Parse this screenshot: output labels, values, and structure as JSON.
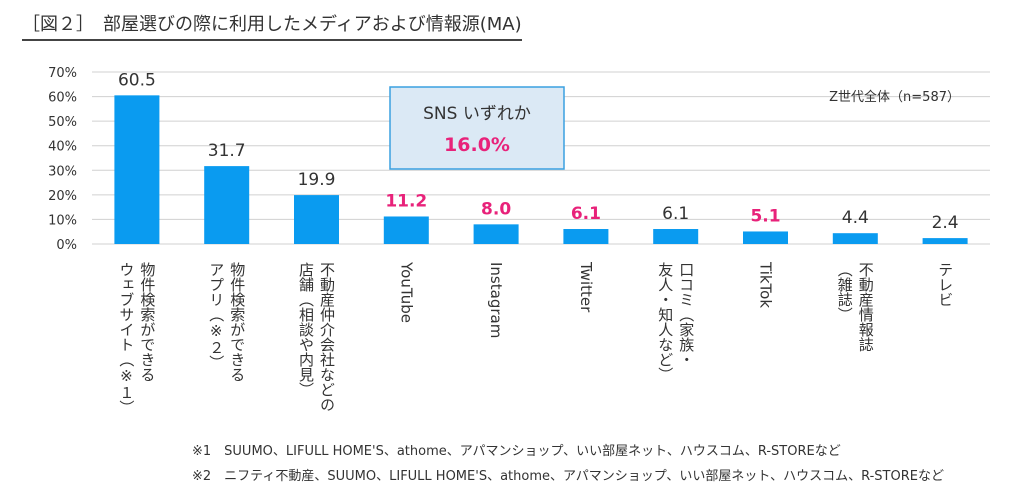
{
  "title": "［図２］　部屋選びの際に利用したメディアおよび情報源(MA)",
  "colors": {
    "bar": "#0a9bf0",
    "highlight": "#e8227a",
    "text": "#333333",
    "callout_fill": "#dbe9f5",
    "callout_border": "#3aa0e0",
    "grid": "#d0d0d0"
  },
  "chart_data": {
    "type": "bar",
    "ylim": [
      0,
      70
    ],
    "yticks": [
      "0%",
      "10%",
      "20%",
      "30%",
      "40%",
      "50%",
      "60%",
      "70%"
    ],
    "grid": true,
    "categories": [
      "物件検索ができるウェブサイト（※１）",
      "物件検索ができるアプリ（※２）",
      "不動産仲介会社などの店舗（相談や内見）",
      "YouTube",
      "Instagram",
      "Twitter",
      "口コミ（家族・友人・知人など）",
      "TikTok",
      "不動産情報誌（雑誌）",
      "テレビ"
    ],
    "values": [
      60.5,
      31.7,
      19.9,
      11.2,
      8.0,
      6.1,
      6.1,
      5.1,
      4.4,
      2.4
    ],
    "value_labels": [
      "60.5",
      "31.7",
      "19.9",
      "11.2",
      "8.0",
      "6.1",
      "6.1",
      "5.1",
      "4.4",
      "2.4"
    ],
    "highlighted": [
      false,
      false,
      false,
      true,
      true,
      true,
      false,
      true,
      false,
      false
    ],
    "label_columns": [
      [
        "物件検索ができる",
        "ウェブサイト（※１）"
      ],
      [
        "物件検索ができる",
        "アプリ（※２）"
      ],
      [
        "不動産仲介会社などの",
        "店舗（相談や内見）"
      ],
      [
        "YouTube"
      ],
      [
        "Instagram"
      ],
      [
        "Twitter"
      ],
      [
        "口コミ（家族・",
        "友人・知人など）"
      ],
      [
        "TikTok"
      ],
      [
        "不動産情報誌",
        "（雑誌）"
      ],
      [
        "テレビ"
      ]
    ],
    "annotations": {
      "sample": "Z世代全体（n=587）",
      "callout_label": "SNS いずれか",
      "callout_value": "16.0%"
    }
  },
  "notes": [
    "※1　SUUMO、LIFULL HOME'S、athome、アパマンショップ、いい部屋ネット、ハウスコム、R-STOREなど",
    "※2　ニフティ不動産、SUUMO、LIFULL HOME'S、athome、アパマンショップ、いい部屋ネット、ハウスコム、R-STOREなど"
  ]
}
